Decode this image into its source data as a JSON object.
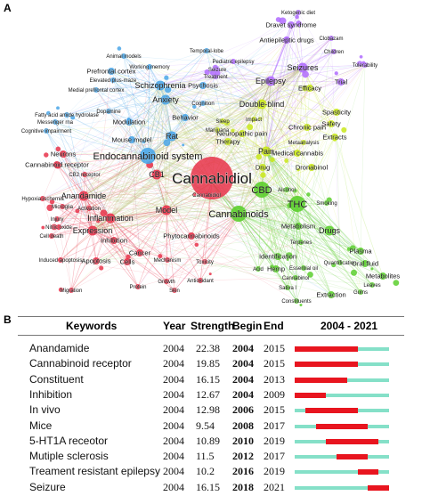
{
  "panel_a": {
    "label": "A",
    "nodes": [
      {
        "id": "n0",
        "text": "Ketogenic diet",
        "color": "#b06bff",
        "size": "xs"
      },
      {
        "id": "n1",
        "text": "Dravet syndrome",
        "color": "#b06bff",
        "size": "sm"
      },
      {
        "id": "n2",
        "text": "Antiepileptic drugs",
        "color": "#b06bff",
        "size": "sm"
      },
      {
        "id": "n3",
        "text": "Clobazam",
        "color": "#b06bff",
        "size": "xs"
      },
      {
        "id": "n4",
        "text": "Children",
        "color": "#b06bff",
        "size": "xs"
      },
      {
        "id": "n5",
        "text": "Pediatric epilepsy",
        "color": "#b06bff",
        "size": "xs"
      },
      {
        "id": "n6",
        "text": "Seizure",
        "color": "#b06bff",
        "size": "xs"
      },
      {
        "id": "n7",
        "text": "Seizures",
        "color": "#b06bff",
        "size": "md"
      },
      {
        "id": "n8",
        "text": "Tolerability",
        "color": "#b06bff",
        "size": "xs"
      },
      {
        "id": "n9",
        "text": "Treatment",
        "color": "#b06bff",
        "size": "xs"
      },
      {
        "id": "n10",
        "text": "Epilepsy",
        "color": "#b06bff",
        "size": "md"
      },
      {
        "id": "n11",
        "text": "Trial",
        "color": "#b06bff",
        "size": "sm"
      },
      {
        "id": "n12",
        "text": "Efficacy",
        "color": "#c9e81a",
        "size": "sm"
      },
      {
        "id": "n13",
        "text": "Temporal-lobe",
        "color": "#4aa6e8",
        "size": "xs"
      },
      {
        "id": "n14",
        "text": "Animal models",
        "color": "#4aa6e8",
        "size": "xs"
      },
      {
        "id": "n15",
        "text": "Working memory",
        "color": "#4aa6e8",
        "size": "xs"
      },
      {
        "id": "n16",
        "text": "Prefrontal cortex",
        "color": "#4aa6e8",
        "size": "sm"
      },
      {
        "id": "n17",
        "text": "Elevated plus-maze",
        "color": "#4aa6e8",
        "size": "xs"
      },
      {
        "id": "n18",
        "text": "Medial prefrontal cortex",
        "color": "#4aa6e8",
        "size": "xs"
      },
      {
        "id": "n19",
        "text": "Schizophrenia",
        "color": "#4aa6e8",
        "size": "md"
      },
      {
        "id": "n20",
        "text": "Psychosis",
        "color": "#4aa6e8",
        "size": "sm"
      },
      {
        "id": "n21",
        "text": "Anxiety",
        "color": "#4aa6e8",
        "size": "md"
      },
      {
        "id": "n22",
        "text": "Cognition",
        "color": "#4aa6e8",
        "size": "xs"
      },
      {
        "id": "n23",
        "text": "Fatty acid amide hydrolase",
        "color": "#4aa6e8",
        "size": "xs"
      },
      {
        "id": "n24",
        "text": "Messenger rna",
        "color": "#4aa6e8",
        "size": "xs"
      },
      {
        "id": "n25",
        "text": "Cognitive impairment",
        "color": "#4aa6e8",
        "size": "xs"
      },
      {
        "id": "n26",
        "text": "Dopamine",
        "color": "#4aa6e8",
        "size": "xs"
      },
      {
        "id": "n27",
        "text": "Modulation",
        "color": "#4aa6e8",
        "size": "sm"
      },
      {
        "id": "n28",
        "text": "Behavior",
        "color": "#4aa6e8",
        "size": "sm"
      },
      {
        "id": "n29",
        "text": "Mouse model",
        "color": "#4aa6e8",
        "size": "sm"
      },
      {
        "id": "n30",
        "text": "Rat",
        "color": "#4aa6e8",
        "size": "md"
      },
      {
        "id": "n31",
        "text": "Double-blind",
        "color": "#c9e81a",
        "size": "md"
      },
      {
        "id": "n32",
        "text": "Spasticity",
        "color": "#c9e81a",
        "size": "sm"
      },
      {
        "id": "n33",
        "text": "Safety",
        "color": "#c9e81a",
        "size": "sm"
      },
      {
        "id": "n34",
        "text": "Sleep",
        "color": "#c9e81a",
        "size": "xs"
      },
      {
        "id": "n35",
        "text": "Impact",
        "color": "#c9e81a",
        "size": "xs"
      },
      {
        "id": "n36",
        "text": "Chronic pain",
        "color": "#c9e81a",
        "size": "sm"
      },
      {
        "id": "n37",
        "text": "Neuropathic pain",
        "color": "#c9e81a",
        "size": "sm"
      },
      {
        "id": "n38",
        "text": "Marijuana",
        "color": "#c9e81a",
        "size": "xs"
      },
      {
        "id": "n39",
        "text": "Extracts",
        "color": "#c9e81a",
        "size": "sm"
      },
      {
        "id": "n40",
        "text": "Therapy",
        "color": "#c9e81a",
        "size": "sm"
      },
      {
        "id": "n41",
        "text": "Pain",
        "color": "#c9e81a",
        "size": "md"
      },
      {
        "id": "n42",
        "text": "Metaanalysis",
        "color": "#c9e81a",
        "size": "xs"
      },
      {
        "id": "n43",
        "text": "Medical cannabis",
        "color": "#c9e81a",
        "size": "sm"
      },
      {
        "id": "n44",
        "text": "Dronabinol",
        "color": "#c9e81a",
        "size": "sm"
      },
      {
        "id": "n45",
        "text": "Drug",
        "color": "#c9e81a",
        "size": "sm"
      },
      {
        "id": "n46",
        "text": "Endocannabinoid system",
        "color": "#4aa6e8",
        "size": "lg"
      },
      {
        "id": "n47",
        "text": "Neurons",
        "color": "#e8324a",
        "size": "sm"
      },
      {
        "id": "n48",
        "text": "Cannabinoid receptor",
        "color": "#e8324a",
        "size": "sm"
      },
      {
        "id": "n49",
        "text": "CB2 receptor",
        "color": "#e8324a",
        "size": "xs"
      },
      {
        "id": "n50",
        "text": "CB1",
        "color": "#e8324a",
        "size": "md"
      },
      {
        "id": "n51",
        "text": "Cannabidiol",
        "color": "#e8324a",
        "size": "xl"
      },
      {
        "id": "n52",
        "text": "Cannabidiol",
        "color": "#e8324a",
        "size": "xs"
      },
      {
        "id": "n53",
        "text": "CBD",
        "color": "#5ccf2e",
        "size": "lg"
      },
      {
        "id": "n54",
        "text": "Alcohol",
        "color": "#5ccf2e",
        "size": "xs"
      },
      {
        "id": "n55",
        "text": "THC",
        "color": "#5ccf2e",
        "size": "lg"
      },
      {
        "id": "n56",
        "text": "Smoking",
        "color": "#5ccf2e",
        "size": "xs"
      },
      {
        "id": "n57",
        "text": "Hypoxia-ischemia",
        "color": "#e8324a",
        "size": "xs"
      },
      {
        "id": "n58",
        "text": "Anandamide",
        "color": "#e8324a",
        "size": "md"
      },
      {
        "id": "n59",
        "text": "Microglia",
        "color": "#e8324a",
        "size": "xs"
      },
      {
        "id": "n60",
        "text": "Activation",
        "color": "#e8324a",
        "size": "xs"
      },
      {
        "id": "n61",
        "text": "Inflammation",
        "color": "#e8324a",
        "size": "md"
      },
      {
        "id": "n62",
        "text": "Model",
        "color": "#e8324a",
        "size": "md"
      },
      {
        "id": "n63",
        "text": "Cannabinoids",
        "color": "#5ccf2e",
        "size": "lg"
      },
      {
        "id": "n64",
        "text": "Injury",
        "color": "#e8324a",
        "size": "xs"
      },
      {
        "id": "n65",
        "text": "Nitric oxide",
        "color": "#e8324a",
        "size": "xs"
      },
      {
        "id": "n66",
        "text": "Expression",
        "color": "#e8324a",
        "size": "md"
      },
      {
        "id": "n67",
        "text": "Cell death",
        "color": "#e8324a",
        "size": "xs"
      },
      {
        "id": "n68",
        "text": "Inhibition",
        "color": "#e8324a",
        "size": "sm"
      },
      {
        "id": "n69",
        "text": "Phytocannabinoids",
        "color": "#e8324a",
        "size": "sm"
      },
      {
        "id": "n70",
        "text": "Metabolism",
        "color": "#5ccf2e",
        "size": "sm"
      },
      {
        "id": "n71",
        "text": "Drugs",
        "color": "#5ccf2e",
        "size": "md"
      },
      {
        "id": "n72",
        "text": "Terpenes",
        "color": "#5ccf2e",
        "size": "xs"
      },
      {
        "id": "n73",
        "text": "Identification",
        "color": "#5ccf2e",
        "size": "sm"
      },
      {
        "id": "n74",
        "text": "Plasma",
        "color": "#5ccf2e",
        "size": "sm"
      },
      {
        "id": "n75",
        "text": "Oral fluid",
        "color": "#5ccf2e",
        "size": "sm"
      },
      {
        "id": "n76",
        "text": "Quantification",
        "color": "#5ccf2e",
        "size": "xs"
      },
      {
        "id": "n77",
        "text": "Acid",
        "color": "#5ccf2e",
        "size": "xs"
      },
      {
        "id": "n78",
        "text": "Hemp",
        "color": "#5ccf2e",
        "size": "sm"
      },
      {
        "id": "n79",
        "text": "Essential oil",
        "color": "#5ccf2e",
        "size": "xs"
      },
      {
        "id": "n80",
        "text": "Cannabinol",
        "color": "#5ccf2e",
        "size": "xs"
      },
      {
        "id": "n81",
        "text": "Sativa l",
        "color": "#5ccf2e",
        "size": "xs"
      },
      {
        "id": "n82",
        "text": "Metabolites",
        "color": "#5ccf2e",
        "size": "sm"
      },
      {
        "id": "n83",
        "text": "Leaves",
        "color": "#5ccf2e",
        "size": "xs"
      },
      {
        "id": "n84",
        "text": "Extraction",
        "color": "#5ccf2e",
        "size": "sm"
      },
      {
        "id": "n85",
        "text": "Gums",
        "color": "#5ccf2e",
        "size": "xs"
      },
      {
        "id": "n86",
        "text": "Constituents",
        "color": "#5ccf2e",
        "size": "xs"
      },
      {
        "id": "n87",
        "text": "Induced apoptosis",
        "color": "#e8324a",
        "size": "xs"
      },
      {
        "id": "n88",
        "text": "Apoptosis",
        "color": "#e8324a",
        "size": "sm"
      },
      {
        "id": "n89",
        "text": "Cells",
        "color": "#e8324a",
        "size": "sm"
      },
      {
        "id": "n90",
        "text": "Cancer",
        "color": "#e8324a",
        "size": "sm"
      },
      {
        "id": "n91",
        "text": "Mechanism",
        "color": "#e8324a",
        "size": "xs"
      },
      {
        "id": "n92",
        "text": "Toxicity",
        "color": "#e8324a",
        "size": "xs"
      },
      {
        "id": "n93",
        "text": "Growth",
        "color": "#e8324a",
        "size": "xs"
      },
      {
        "id": "n94",
        "text": "Antioxidant",
        "color": "#e8324a",
        "size": "xs"
      },
      {
        "id": "n95",
        "text": "Protein",
        "color": "#e8324a",
        "size": "xs"
      },
      {
        "id": "n96",
        "text": "Skin",
        "color": "#e8324a",
        "size": "xs"
      },
      {
        "id": "n97",
        "text": "Migration",
        "color": "#e8324a",
        "size": "xs"
      }
    ]
  },
  "panel_b": {
    "label": "B",
    "headers": {
      "keywords": "Keywords",
      "year": "Year",
      "strength": "Strength",
      "begin": "Begin",
      "end": "End",
      "range": "2004 - 2021"
    },
    "range_start": 2004,
    "range_end": 2021,
    "burst_color": "#e8151f",
    "base_color": "#85e0c8",
    "rows": [
      {
        "keyword": "Anandamide",
        "year": "2004",
        "strength": "22.38",
        "begin": "2004",
        "end": "2015"
      },
      {
        "keyword": "Cannabinoid receptor",
        "year": "2004",
        "strength": "19.85",
        "begin": "2004",
        "end": "2015"
      },
      {
        "keyword": "Constituent",
        "year": "2004",
        "strength": "16.15",
        "begin": "2004",
        "end": "2013"
      },
      {
        "keyword": "Inhibition",
        "year": "2004",
        "strength": "12.67",
        "begin": "2004",
        "end": "2009"
      },
      {
        "keyword": "In vivo",
        "year": "2004",
        "strength": "12.98",
        "begin": "2006",
        "end": "2015"
      },
      {
        "keyword": "Mice",
        "year": "2004",
        "strength": "9.54",
        "begin": "2008",
        "end": "2017"
      },
      {
        "keyword": "5-HT1A receotor",
        "year": "2004",
        "strength": "10.89",
        "begin": "2010",
        "end": "2019"
      },
      {
        "keyword": "Mutiple sclerosis",
        "year": "2004",
        "strength": "11.5",
        "begin": "2012",
        "end": "2017"
      },
      {
        "keyword": "Treament resistant epilepsy",
        "year": "2004",
        "strength": "10.2",
        "begin": "2016",
        "end": "2019"
      },
      {
        "keyword": "Seizure",
        "year": "2004",
        "strength": "16.15",
        "begin": "2018",
        "end": "2021"
      }
    ]
  }
}
